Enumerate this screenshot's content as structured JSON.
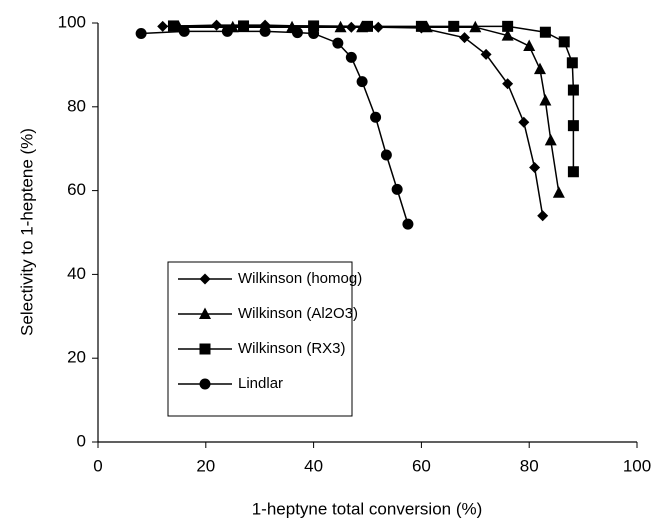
{
  "chart_data": {
    "type": "line",
    "xlabel": "1-heptyne total conversion (%)",
    "ylabel": "Selectivity to 1-heptene  (%)",
    "xlim": [
      0,
      100
    ],
    "xticks": [
      0,
      20,
      40,
      60,
      80,
      100
    ],
    "ylim": [
      0,
      100
    ],
    "yticks": [
      0,
      20,
      40,
      60,
      80,
      100
    ],
    "grid": false,
    "legend": "lower left",
    "series": [
      {
        "name": "Wilkinson (homog)",
        "color": "#000000",
        "marker": "diamond",
        "x": [
          12,
          22,
          31,
          47,
          52,
          60,
          68,
          72,
          76,
          79,
          81,
          82.5
        ],
        "values": [
          99.2,
          99.5,
          99.5,
          99,
          99,
          98.8,
          96.5,
          92.5,
          85.5,
          76.3,
          65.5,
          54
        ]
      },
      {
        "name": "Wilkinson (Al2O3)",
        "color": "#000000",
        "marker": "triangle",
        "x": [
          15,
          25,
          36,
          45,
          49,
          61,
          70,
          76,
          80,
          82,
          83,
          84,
          85.5
        ],
        "values": [
          99,
          99,
          99,
          99,
          99,
          99,
          99,
          97,
          94.5,
          89,
          81.5,
          72,
          59.5
        ]
      },
      {
        "name": "Wilkinson (RX3)",
        "color": "#000000",
        "marker": "square",
        "x": [
          14,
          27,
          40,
          50,
          60,
          66,
          76,
          83,
          86.5,
          88,
          88.2,
          88.2,
          88.2
        ],
        "values": [
          99.3,
          99.3,
          99.3,
          99.2,
          99.2,
          99.2,
          99.2,
          97.8,
          95.5,
          90.5,
          84,
          75.5,
          64.5
        ]
      },
      {
        "name": "Lindlar",
        "color": "#000000",
        "marker": "circle",
        "x": [
          8,
          16,
          24,
          31,
          37,
          40,
          44.5,
          47,
          49,
          51.5,
          53.5,
          55.5,
          57.5
        ],
        "values": [
          97.5,
          98,
          98,
          98,
          97.7,
          97.5,
          95.2,
          91.8,
          86,
          77.5,
          68.5,
          60.3,
          52
        ]
      }
    ]
  }
}
